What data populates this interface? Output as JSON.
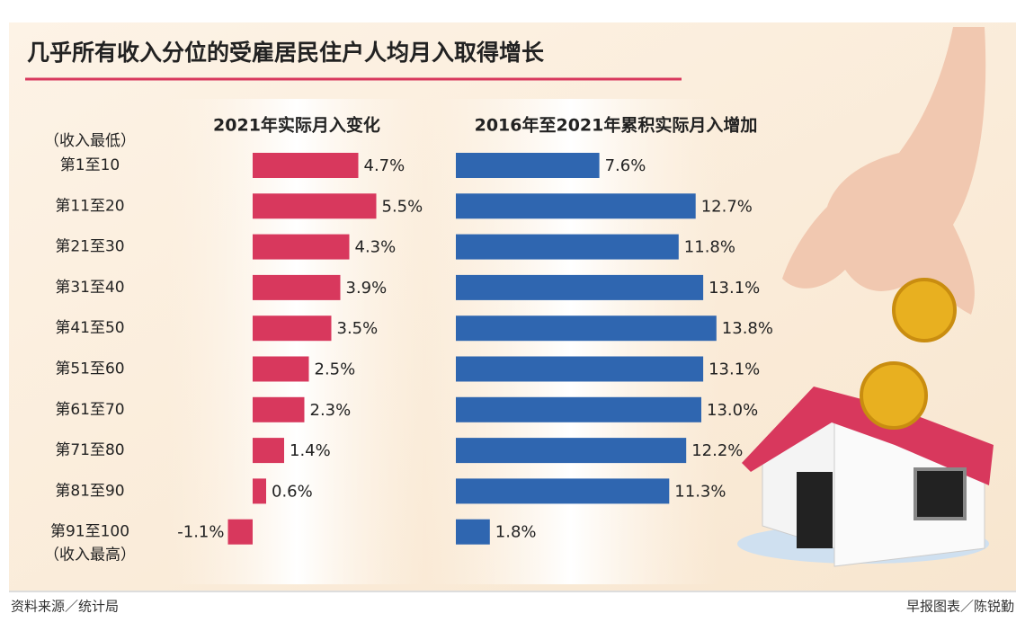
{
  "title": "几乎所有收入分位的受雇居民住户人均月入取得增长",
  "chart_data": {
    "type": "bar",
    "orientation": "horizontal",
    "categories": [
      "第1至10",
      "第11至20",
      "第21至30",
      "第31至40",
      "第41至50",
      "第51至60",
      "第61至70",
      "第71至80",
      "第81至90",
      "第91至100"
    ],
    "annotations": [
      "（收入最低）",
      "（收入最高）"
    ],
    "series": [
      {
        "name": "2021年实际月入变化",
        "color": "#d8385d",
        "values": [
          4.7,
          5.5,
          4.3,
          3.9,
          3.5,
          2.5,
          2.3,
          1.4,
          0.6,
          -1.1
        ],
        "value_labels": [
          "4.7%",
          "5.5%",
          "4.3%",
          "3.9%",
          "3.5%",
          "2.5%",
          "2.3%",
          "1.4%",
          "0.6%",
          "-1.1%"
        ]
      },
      {
        "name": "2016年至2021年累积实际月入增加",
        "color": "#2f66b0",
        "values": [
          7.6,
          12.7,
          11.8,
          13.1,
          13.8,
          13.1,
          13.0,
          12.2,
          11.3,
          1.8
        ],
        "value_labels": [
          "7.6%",
          "12.7%",
          "11.8%",
          "13.1%",
          "13.8%",
          "13.1%",
          "13.0%",
          "12.2%",
          "11.3%",
          "1.8%"
        ]
      }
    ]
  },
  "source": "资料来源／统计局",
  "credit": "早报图表／陈锐勤"
}
